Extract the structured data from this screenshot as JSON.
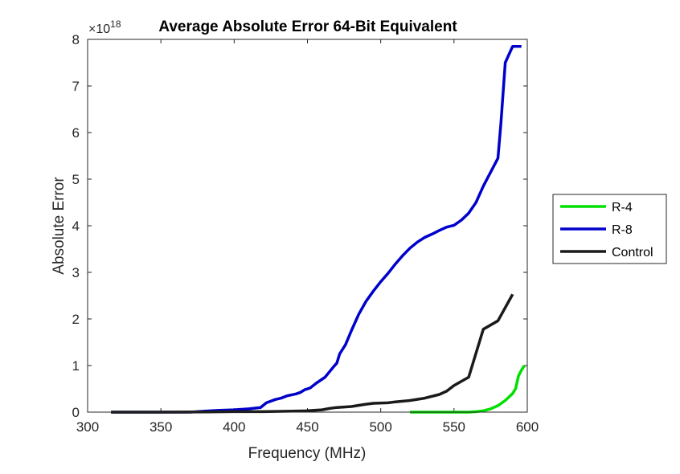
{
  "chart_data": {
    "type": "line",
    "title": "Average Absolute Error 64-Bit Equivalent",
    "xlabel": "Frequency (MHz)",
    "ylabel": "Absolute Error",
    "y_exponent": {
      "base": "×10",
      "power": "18"
    },
    "xlim": [
      300,
      600
    ],
    "ylim": [
      0,
      8
    ],
    "xticks": [
      300,
      350,
      400,
      450,
      500,
      550,
      600
    ],
    "yticks": [
      0,
      1,
      2,
      3,
      4,
      5,
      6,
      7,
      8
    ],
    "grid": false,
    "legend_position": "outside-right",
    "series": [
      {
        "name": "R-4",
        "color": "#00e000",
        "points": [
          [
            520,
            0
          ],
          [
            540,
            0
          ],
          [
            560,
            0
          ],
          [
            565,
            0.01
          ],
          [
            570,
            0.03
          ],
          [
            575,
            0.07
          ],
          [
            580,
            0.14
          ],
          [
            585,
            0.25
          ],
          [
            590,
            0.4
          ],
          [
            592,
            0.5
          ],
          [
            594,
            0.78
          ],
          [
            596,
            0.9
          ],
          [
            598,
            1.0
          ]
        ]
      },
      {
        "name": "R-8",
        "color": "#0000cc",
        "points": [
          [
            316,
            0
          ],
          [
            340,
            0
          ],
          [
            370,
            0
          ],
          [
            380,
            0.02
          ],
          [
            390,
            0.04
          ],
          [
            400,
            0.05
          ],
          [
            410,
            0.07
          ],
          [
            418,
            0.1
          ],
          [
            422,
            0.2
          ],
          [
            428,
            0.27
          ],
          [
            432,
            0.3
          ],
          [
            436,
            0.35
          ],
          [
            442,
            0.39
          ],
          [
            445,
            0.42
          ],
          [
            448,
            0.48
          ],
          [
            452,
            0.52
          ],
          [
            456,
            0.62
          ],
          [
            462,
            0.75
          ],
          [
            468,
            0.98
          ],
          [
            470,
            1.05
          ],
          [
            472,
            1.25
          ],
          [
            476,
            1.45
          ],
          [
            480,
            1.75
          ],
          [
            485,
            2.1
          ],
          [
            490,
            2.38
          ],
          [
            495,
            2.6
          ],
          [
            500,
            2.8
          ],
          [
            505,
            2.98
          ],
          [
            510,
            3.18
          ],
          [
            515,
            3.36
          ],
          [
            520,
            3.52
          ],
          [
            525,
            3.65
          ],
          [
            530,
            3.75
          ],
          [
            535,
            3.82
          ],
          [
            540,
            3.9
          ],
          [
            545,
            3.97
          ],
          [
            550,
            4.01
          ],
          [
            555,
            4.12
          ],
          [
            560,
            4.27
          ],
          [
            565,
            4.5
          ],
          [
            570,
            4.85
          ],
          [
            575,
            5.15
          ],
          [
            580,
            5.45
          ],
          [
            582,
            6.2
          ],
          [
            585,
            7.5
          ],
          [
            590,
            7.85
          ],
          [
            596,
            7.85
          ]
        ]
      },
      {
        "name": "Control",
        "color": "#1a1a1a",
        "points": [
          [
            316,
            0
          ],
          [
            350,
            0
          ],
          [
            380,
            0.005
          ],
          [
            400,
            0.01
          ],
          [
            420,
            0.01
          ],
          [
            440,
            0.02
          ],
          [
            450,
            0.03
          ],
          [
            460,
            0.05
          ],
          [
            465,
            0.08
          ],
          [
            470,
            0.1
          ],
          [
            480,
            0.12
          ],
          [
            490,
            0.17
          ],
          [
            495,
            0.19
          ],
          [
            505,
            0.2
          ],
          [
            510,
            0.22
          ],
          [
            520,
            0.25
          ],
          [
            530,
            0.3
          ],
          [
            540,
            0.38
          ],
          [
            545,
            0.45
          ],
          [
            550,
            0.57
          ],
          [
            560,
            0.75
          ],
          [
            570,
            1.78
          ],
          [
            580,
            1.96
          ],
          [
            590,
            2.53
          ]
        ]
      }
    ]
  }
}
